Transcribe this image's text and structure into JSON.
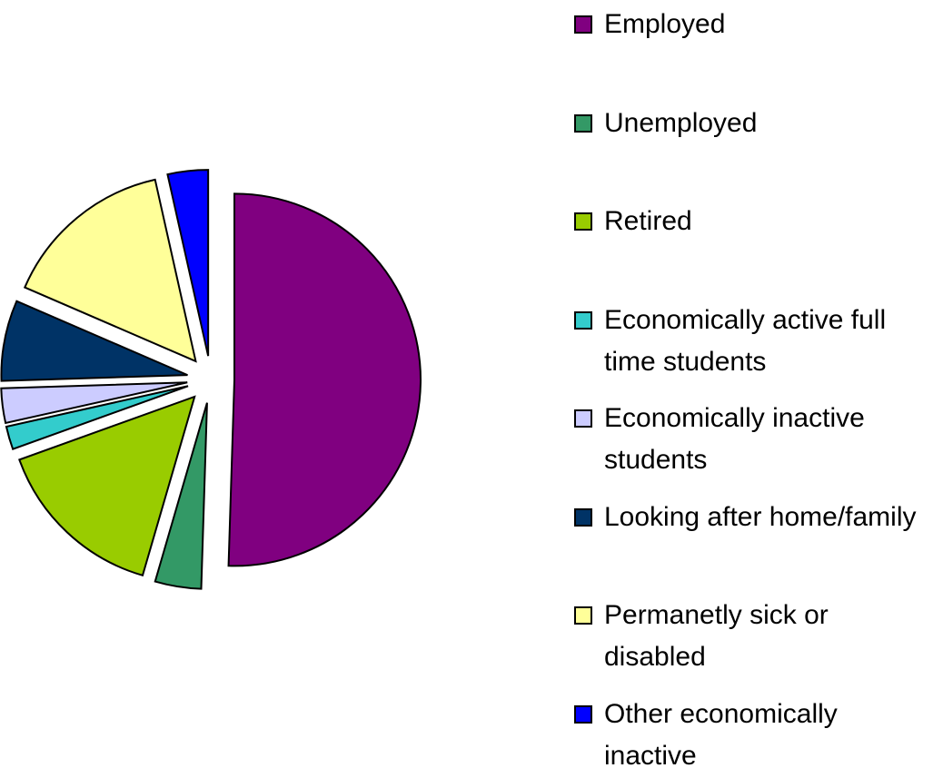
{
  "chart_data": {
    "type": "pie",
    "categories": [
      "Employed",
      "Unemployed",
      "Retired",
      "Economically active full time students",
      "Economically inactive students",
      "Looking after home/family",
      "Permanetly sick or disabled",
      "Other economically inactive"
    ],
    "values": [
      50.5,
      4,
      15,
      2,
      3,
      7,
      15,
      3.5
    ],
    "colors": [
      "#800080",
      "#339966",
      "#99cc00",
      "#33cccc",
      "#ccccff",
      "#003366",
      "#ffff99",
      "#0000ff"
    ],
    "exploded": true
  }
}
